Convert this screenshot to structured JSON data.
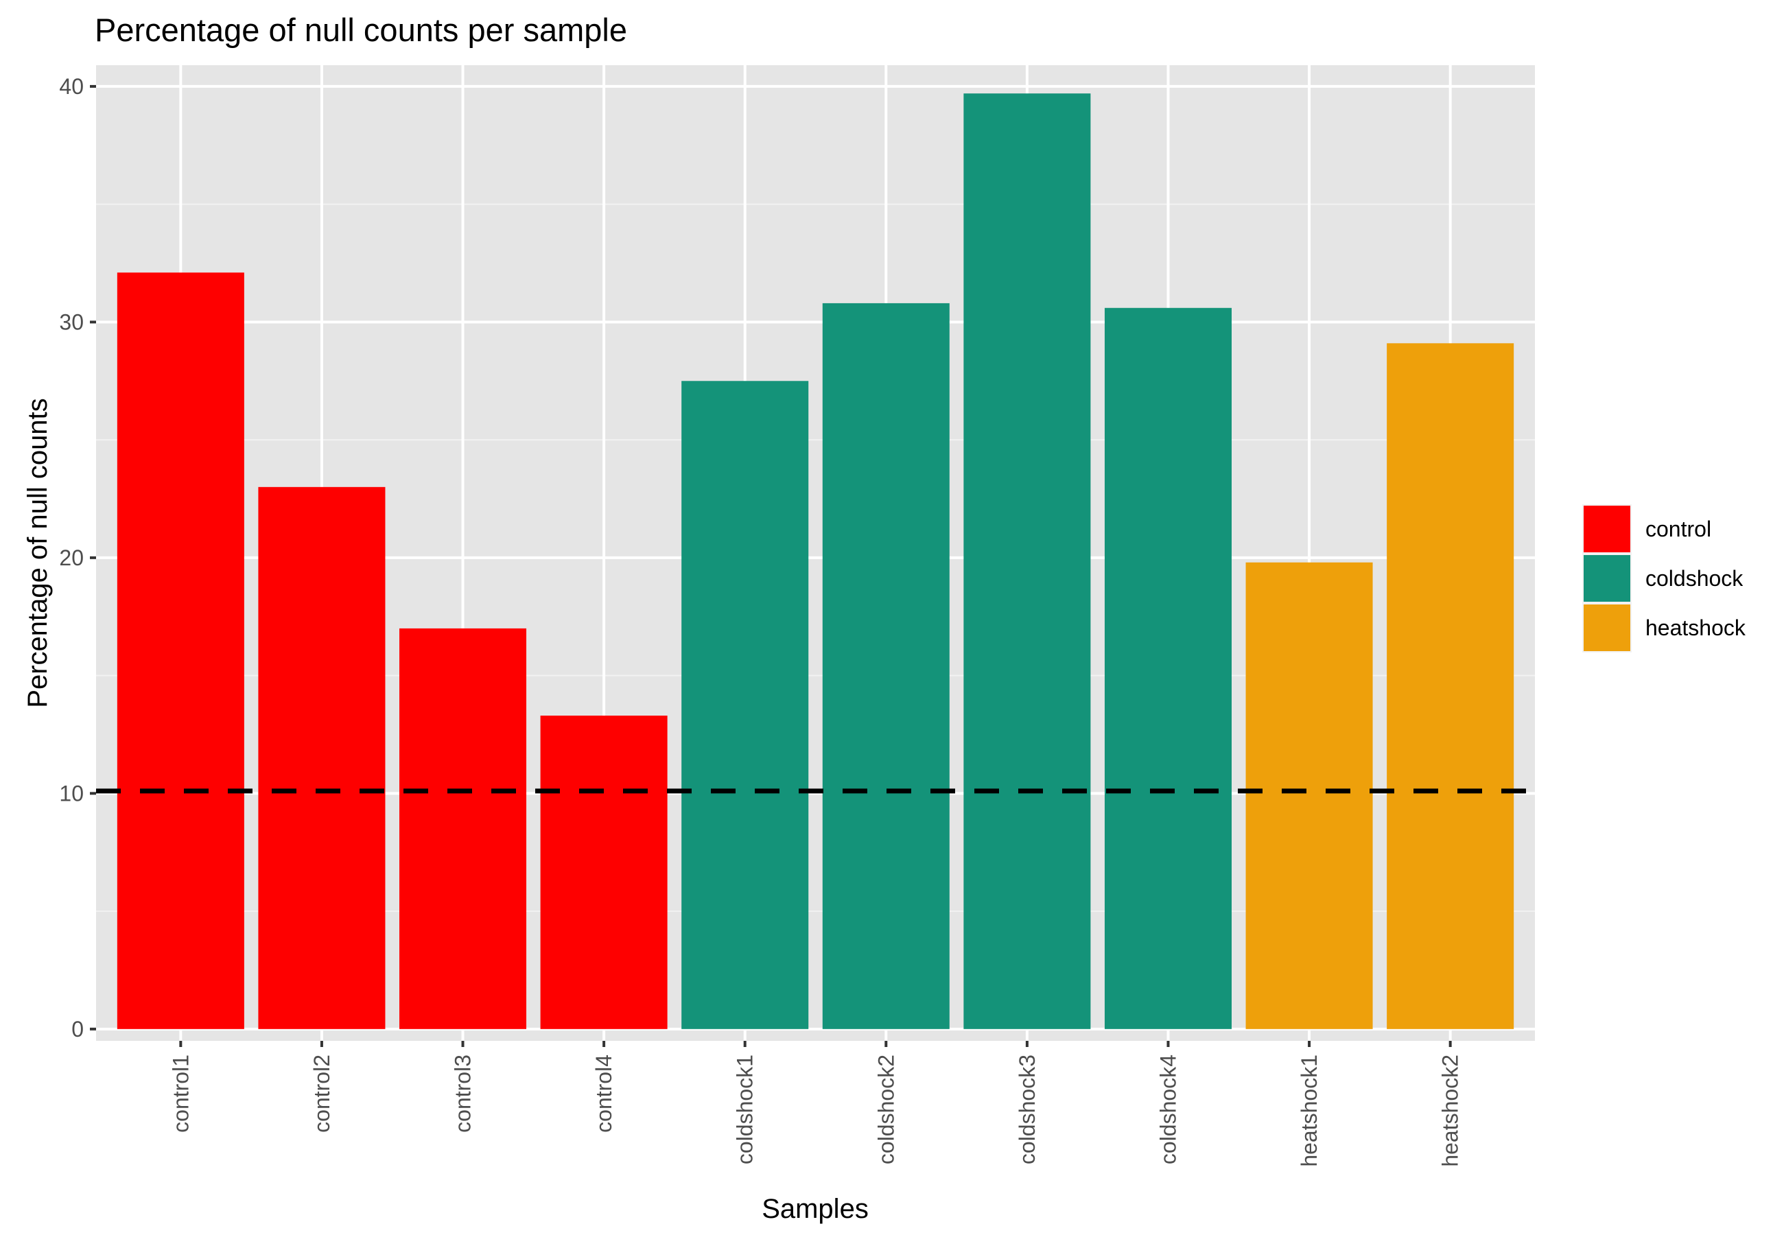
{
  "chart_data": {
    "type": "bar",
    "title": "Percentage of null counts per sample",
    "xlabel": "Samples",
    "ylabel": "Percentage of null counts",
    "categories": [
      "control1",
      "control2",
      "control3",
      "control4",
      "coldshock1",
      "coldshock2",
      "coldshock3",
      "coldshock4",
      "heatshock1",
      "heatshock2"
    ],
    "values": [
      32.1,
      23.0,
      17.0,
      13.3,
      27.5,
      30.8,
      39.7,
      30.6,
      19.8,
      29.1
    ],
    "groups": [
      "control",
      "control",
      "control",
      "control",
      "coldshock",
      "coldshock",
      "coldshock",
      "coldshock",
      "heatshock",
      "heatshock"
    ],
    "ylim": [
      -0.5,
      40.9
    ],
    "yticks": [
      0,
      10,
      20,
      30,
      40
    ],
    "reference_line": {
      "y": 10.1,
      "style": "dashed",
      "color": "#000000"
    },
    "legend": {
      "position": "right",
      "entries": [
        {
          "label": "control",
          "color": "#FE0000"
        },
        {
          "label": "coldshock",
          "color": "#149379"
        },
        {
          "label": "heatshock",
          "color": "#EEA00B"
        }
      ]
    },
    "grid": true,
    "panel_background": "#E5E5E5"
  }
}
